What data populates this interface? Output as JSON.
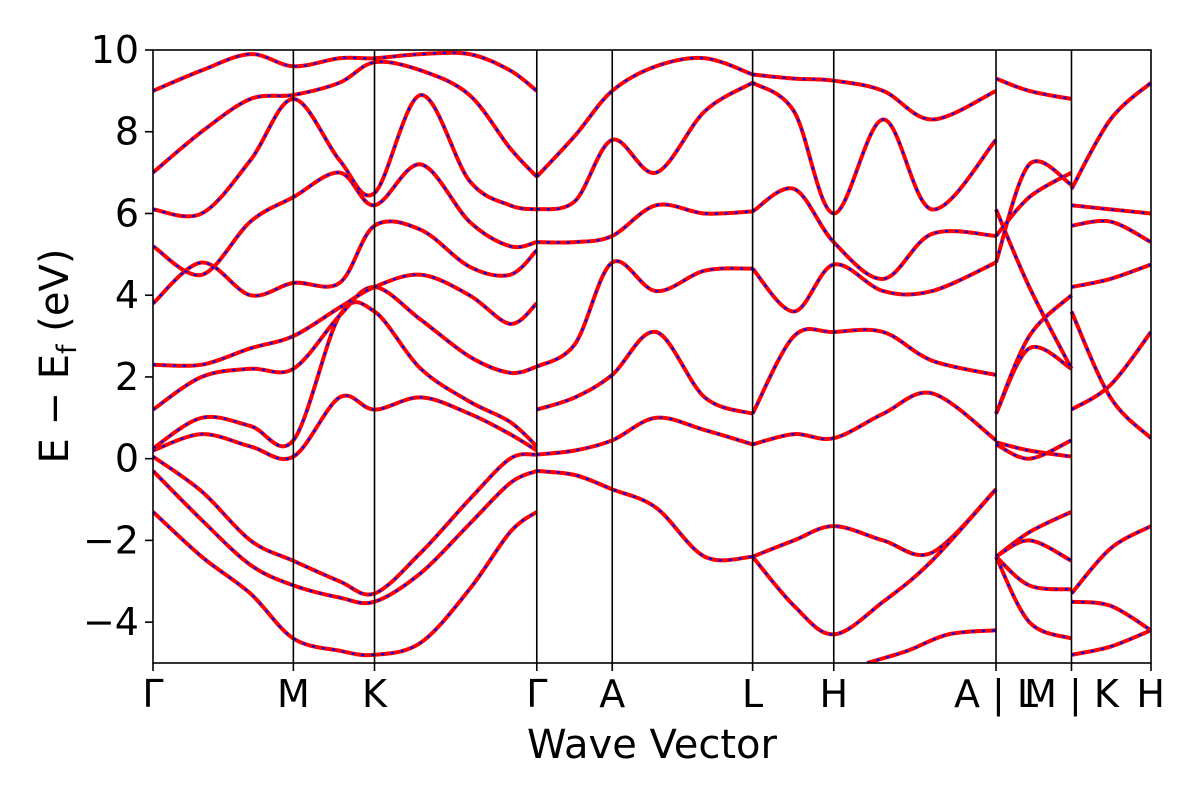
{
  "chart_data": {
    "type": "line",
    "xlabel": "Wave Vector",
    "ylabel": "E − E",
    "ylabel_sub": "f",
    "ylabel_unit": " (eV)",
    "ylim": [
      -5,
      10
    ],
    "yticks": [
      -4,
      -2,
      0,
      2,
      4,
      6,
      8,
      10
    ],
    "ytick_labels": [
      "−4",
      "−2",
      "0",
      "2",
      "4",
      "6",
      "8",
      "10"
    ],
    "xlim": [
      0,
      12.3
    ],
    "kpoints": [
      {
        "label": "Γ",
        "x": 0
      },
      {
        "label": "M",
        "x": 1.73
      },
      {
        "label": "K",
        "x": 2.73
      },
      {
        "label": "Γ",
        "x": 4.73
      },
      {
        "label": "A",
        "x": 5.66
      },
      {
        "label": "L",
        "x": 7.39
      },
      {
        "label": "H",
        "x": 8.39
      },
      {
        "label": "A | L",
        "x": 10.39
      },
      {
        "label": "M | K",
        "x": 11.32
      },
      {
        "label": "H",
        "x": 12.3
      }
    ],
    "band_colors": {
      "solid": "#ff0000",
      "dashed": "#0000ff"
    },
    "grid": false,
    "bands": [
      {
        "x": [
          0,
          0.6,
          1.2,
          1.73,
          2.3,
          2.73,
          3.3,
          3.9,
          4.4,
          4.73
        ],
        "y": [
          -1.3,
          -2.4,
          -3.3,
          -4.4,
          -4.7,
          -4.8,
          -4.5,
          -3.2,
          -1.8,
          -1.3
        ]
      },
      {
        "x": [
          0,
          0.6,
          1.2,
          1.73,
          2.3,
          2.73,
          3.3,
          3.9,
          4.4,
          4.73
        ],
        "y": [
          -0.3,
          -1.5,
          -2.6,
          -3.1,
          -3.4,
          -3.5,
          -2.8,
          -1.6,
          -0.6,
          -0.3
        ]
      },
      {
        "x": [
          0,
          0.6,
          1.2,
          1.73,
          2.3,
          2.73,
          3.3,
          3.9,
          4.4,
          4.73
        ],
        "y": [
          0.05,
          -0.8,
          -2.0,
          -2.5,
          -3.0,
          -3.3,
          -2.3,
          -1.0,
          0.0,
          0.1
        ]
      },
      {
        "x": [
          0,
          0.6,
          1.2,
          1.73,
          2.3,
          2.73,
          3.3,
          3.9,
          4.4,
          4.73
        ],
        "y": [
          0.2,
          0.6,
          0.3,
          0.05,
          1.5,
          1.2,
          1.5,
          1.1,
          0.6,
          0.2
        ]
      },
      {
        "x": [
          0,
          0.6,
          1.2,
          1.73,
          2.3,
          2.73,
          3.3,
          3.9,
          4.4,
          4.73
        ],
        "y": [
          0.25,
          1.0,
          0.8,
          0.45,
          3.5,
          3.6,
          2.2,
          1.4,
          0.9,
          0.3
        ]
      },
      {
        "x": [
          0,
          0.6,
          1.2,
          1.73,
          2.3,
          2.73,
          3.3,
          3.9,
          4.4,
          4.73
        ],
        "y": [
          1.2,
          2.0,
          2.2,
          2.2,
          3.5,
          4.2,
          3.4,
          2.5,
          2.1,
          2.25
        ]
      },
      {
        "x": [
          0,
          0.6,
          1.2,
          1.73,
          2.3,
          2.73,
          3.3,
          3.9,
          4.4,
          4.73
        ],
        "y": [
          2.3,
          2.3,
          2.7,
          3.0,
          3.7,
          4.2,
          4.5,
          4.0,
          3.3,
          3.8
        ]
      },
      {
        "x": [
          0,
          0.6,
          1.2,
          1.73,
          2.3,
          2.73,
          3.3,
          3.9,
          4.4,
          4.73
        ],
        "y": [
          3.8,
          4.8,
          4.0,
          4.3,
          4.3,
          5.7,
          5.6,
          4.7,
          4.5,
          5.1
        ]
      },
      {
        "x": [
          0,
          0.6,
          1.2,
          1.73,
          2.3,
          2.73,
          3.3,
          3.9,
          4.4,
          4.73
        ],
        "y": [
          5.2,
          4.5,
          5.8,
          6.4,
          7.0,
          6.2,
          7.2,
          5.8,
          5.2,
          5.3
        ]
      },
      {
        "x": [
          0,
          0.6,
          1.2,
          1.73,
          2.3,
          2.73,
          3.3,
          3.9,
          4.4,
          4.73
        ],
        "y": [
          6.1,
          6.0,
          7.3,
          8.8,
          7.3,
          6.5,
          8.9,
          6.8,
          6.2,
          6.1
        ]
      },
      {
        "x": [
          0,
          0.6,
          1.2,
          1.73,
          2.3,
          2.73,
          3.3,
          3.9,
          4.4,
          4.73
        ],
        "y": [
          7.0,
          8.0,
          8.8,
          8.9,
          9.2,
          9.7,
          9.5,
          8.9,
          7.6,
          6.9
        ]
      },
      {
        "x": [
          0,
          0.6,
          1.2,
          1.73,
          2.3,
          2.73,
          3.3,
          3.9,
          4.4,
          4.73
        ],
        "y": [
          9.0,
          9.5,
          9.9,
          9.6,
          9.8,
          9.8,
          9.9,
          9.9,
          9.5,
          9.0
        ]
      },
      {
        "x": [
          4.73,
          5.2,
          5.66,
          6.2,
          6.8,
          7.39
        ],
        "y": [
          -0.3,
          -0.4,
          -0.75,
          -1.2,
          -2.4,
          -2.4
        ]
      },
      {
        "x": [
          4.73,
          5.2,
          5.66,
          6.2,
          6.8,
          7.39
        ],
        "y": [
          0.1,
          0.2,
          0.45,
          1.0,
          0.7,
          0.35
        ]
      },
      {
        "x": [
          4.73,
          5.2,
          5.66,
          6.2,
          6.8,
          7.39
        ],
        "y": [
          1.2,
          1.5,
          2.05,
          3.1,
          1.5,
          1.1
        ]
      },
      {
        "x": [
          4.73,
          5.2,
          5.66,
          6.2,
          6.8,
          7.39
        ],
        "y": [
          2.25,
          2.8,
          4.8,
          4.1,
          4.6,
          4.65
        ]
      },
      {
        "x": [
          4.73,
          5.2,
          5.66,
          6.2,
          6.8,
          7.39
        ],
        "y": [
          5.3,
          5.3,
          5.45,
          6.2,
          6.0,
          6.05
        ]
      },
      {
        "x": [
          4.73,
          5.2,
          5.66,
          6.2,
          6.8,
          7.39
        ],
        "y": [
          6.1,
          6.3,
          7.8,
          7.0,
          8.5,
          9.2
        ]
      },
      {
        "x": [
          4.73,
          5.2,
          5.66,
          6.2,
          6.8,
          7.39
        ],
        "y": [
          6.9,
          7.9,
          9.0,
          9.6,
          9.8,
          9.4
        ]
      },
      {
        "x": [
          7.39,
          7.9,
          8.39,
          9.0,
          9.6,
          10.39
        ],
        "y": [
          -2.4,
          -2.0,
          -1.65,
          -2.0,
          -2.3,
          -0.75
        ]
      },
      {
        "x": [
          7.39,
          7.9,
          8.39,
          9.0,
          9.6,
          10.39
        ],
        "y": [
          -2.4,
          -3.6,
          -4.3,
          -3.5,
          -2.5,
          -0.75
        ]
      },
      {
        "x": [
          7.39,
          7.9,
          8.39,
          9.0,
          9.6,
          10.39
        ],
        "y": [
          0.35,
          0.6,
          0.5,
          1.1,
          1.6,
          0.45
        ]
      },
      {
        "x": [
          7.39,
          7.9,
          8.39,
          9.0,
          9.6,
          10.39
        ],
        "y": [
          1.1,
          3.0,
          3.1,
          3.1,
          2.4,
          2.05
        ]
      },
      {
        "x": [
          7.39,
          7.9,
          8.39,
          9.0,
          9.6,
          10.39
        ],
        "y": [
          4.65,
          3.6,
          4.75,
          4.1,
          4.1,
          4.8
        ]
      },
      {
        "x": [
          7.39,
          7.9,
          8.39,
          9.0,
          9.6,
          10.39
        ],
        "y": [
          6.05,
          6.6,
          5.3,
          4.4,
          5.5,
          5.45
        ]
      },
      {
        "x": [
          7.39,
          7.9,
          8.39,
          9.0,
          9.6,
          10.39
        ],
        "y": [
          9.2,
          8.5,
          6.0,
          8.3,
          6.1,
          7.8
        ]
      },
      {
        "x": [
          7.39,
          7.9,
          8.39,
          9.0,
          9.6,
          10.39
        ],
        "y": [
          9.4,
          9.3,
          9.25,
          9.0,
          8.3,
          9.0
        ]
      },
      {
        "x": [
          8.8,
          9.3,
          9.8,
          10.39
        ],
        "y": [
          -5.0,
          -4.7,
          -4.3,
          -4.2
        ]
      },
      {
        "x": [
          10.39,
          10.8,
          11.32
        ],
        "y": [
          -2.4,
          -1.8,
          -1.3
        ]
      },
      {
        "x": [
          10.39,
          10.8,
          11.32
        ],
        "y": [
          -2.4,
          -3.1,
          -3.2
        ]
      },
      {
        "x": [
          10.39,
          10.8,
          11.32
        ],
        "y": [
          -2.4,
          -2.0,
          -2.5
        ]
      },
      {
        "x": [
          10.39,
          10.8,
          11.32
        ],
        "y": [
          -2.4,
          -4.0,
          -4.4
        ]
      },
      {
        "x": [
          10.39,
          10.8,
          11.32
        ],
        "y": [
          0.4,
          0.2,
          0.05
        ]
      },
      {
        "x": [
          10.39,
          10.8,
          11.32
        ],
        "y": [
          1.1,
          2.7,
          2.2
        ]
      },
      {
        "x": [
          10.39,
          10.8,
          11.32
        ],
        "y": [
          0.35,
          0.0,
          0.45
        ]
      },
      {
        "x": [
          10.39,
          10.8,
          11.32
        ],
        "y": [
          1.1,
          3.0,
          4.0
        ]
      },
      {
        "x": [
          10.39,
          10.8,
          11.32
        ],
        "y": [
          6.1,
          4.2,
          2.2
        ]
      },
      {
        "x": [
          10.39,
          10.8,
          11.32
        ],
        "y": [
          5.45,
          6.4,
          7.0
        ]
      },
      {
        "x": [
          10.39,
          10.8,
          11.32
        ],
        "y": [
          4.8,
          7.2,
          6.7
        ]
      },
      {
        "x": [
          10.39,
          10.8,
          11.32
        ],
        "y": [
          9.3,
          9.0,
          8.8
        ]
      },
      {
        "x": [
          11.32,
          11.8,
          12.3
        ],
        "y": [
          -4.8,
          -4.6,
          -4.2
        ]
      },
      {
        "x": [
          11.32,
          11.8,
          12.3
        ],
        "y": [
          -3.3,
          -2.2,
          -1.65
        ]
      },
      {
        "x": [
          11.32,
          11.8,
          12.3
        ],
        "y": [
          -3.5,
          -3.6,
          -4.2
        ]
      },
      {
        "x": [
          11.32,
          11.8,
          12.3
        ],
        "y": [
          1.2,
          1.8,
          3.1
        ]
      },
      {
        "x": [
          11.32,
          11.8,
          12.3
        ],
        "y": [
          3.6,
          1.5,
          0.5
        ]
      },
      {
        "x": [
          11.32,
          11.8,
          12.3
        ],
        "y": [
          4.2,
          4.4,
          4.75
        ]
      },
      {
        "x": [
          11.32,
          11.8,
          12.3
        ],
        "y": [
          6.2,
          6.1,
          6.0
        ]
      },
      {
        "x": [
          11.32,
          11.8,
          12.3
        ],
        "y": [
          5.7,
          5.8,
          5.3
        ]
      },
      {
        "x": [
          11.32,
          11.8,
          12.3
        ],
        "y": [
          6.6,
          8.3,
          9.2
        ]
      }
    ]
  }
}
